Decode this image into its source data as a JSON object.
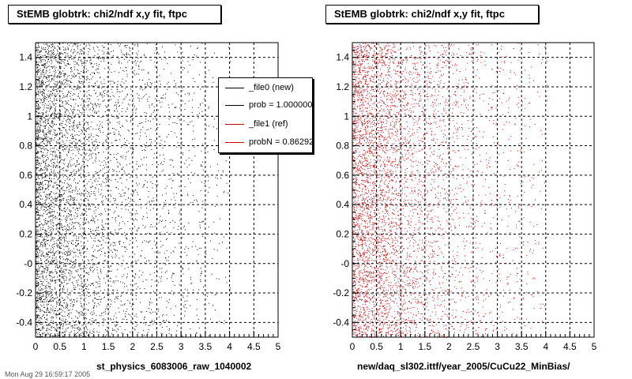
{
  "chart_data": [
    {
      "type": "scatter",
      "title": "StEMB globtrk: chi2/ndf x,y fit, ftpc",
      "xlabel": "st_physics_6083006_raw_1040002",
      "ylabel": "",
      "xlim": [
        0,
        5
      ],
      "ylim": [
        -0.5,
        1.5
      ],
      "xticks": [
        "0",
        "0.5",
        "1",
        "1.5",
        "2",
        "2.5",
        "3",
        "3.5",
        "4",
        "4.5",
        "5"
      ],
      "yticks": [
        "-0.4",
        "-0.2",
        "-0",
        "0.2",
        "0.4",
        "0.6",
        "0.8",
        "1",
        "1.2",
        "1.4"
      ],
      "grid": true,
      "series": [
        {
          "name": "_file0 (new)",
          "color": "#000000",
          "distribution": "dense near x=0, decaying toward x=5, uniform in y from -0.5 to 1.5"
        }
      ],
      "legend": {
        "position": "top-right",
        "entries": [
          {
            "label": "_file0 (new)",
            "color": "#000000"
          },
          {
            "label": "prob = 1.000000",
            "color": "#000000"
          },
          {
            "label": "_file1 (ref)",
            "color": "#cc0000"
          },
          {
            "label": "probN = 0.862920",
            "color": "#cc0000"
          }
        ]
      }
    },
    {
      "type": "scatter",
      "title": "StEMB globtrk: chi2/ndf x,y fit, ftpc",
      "xlabel": "new/daq_sl302.ittf/year_2005/CuCu22_MinBias/",
      "ylabel": "",
      "xlim": [
        0,
        5
      ],
      "ylim": [
        -0.5,
        1.5
      ],
      "xticks": [
        "0",
        "0.5",
        "1",
        "1.5",
        "2",
        "2.5",
        "3",
        "3.5",
        "4",
        "4.5",
        "5"
      ],
      "yticks": [
        "-0.4",
        "-0.2",
        "-0",
        "0.2",
        "0.4",
        "0.6",
        "0.8",
        "1",
        "1.2",
        "1.4"
      ],
      "grid": true,
      "series": [
        {
          "name": "_file1 (ref)",
          "color": "#cc0000",
          "distribution": "dense near x=0, decaying toward x=5, uniform in y from -0.5 to 1.5"
        }
      ]
    }
  ],
  "footer_stamp": "Mon Aug 29 16:59:17 2005"
}
